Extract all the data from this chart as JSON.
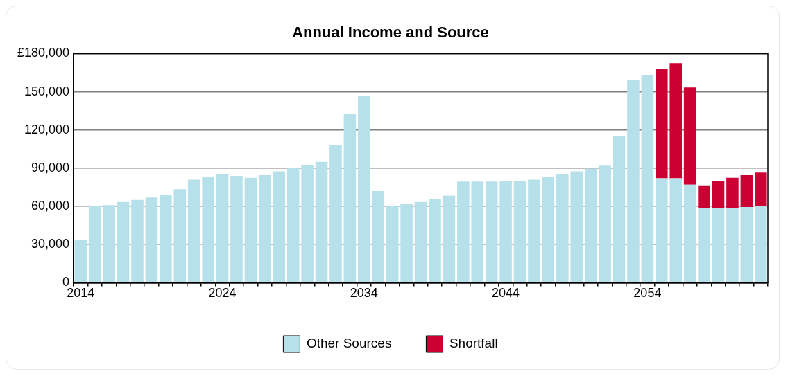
{
  "chart_data": {
    "type": "bar",
    "title": "Annual Income and Source",
    "stacked": true,
    "categories": [
      "2014",
      null,
      null,
      null,
      null,
      null,
      null,
      null,
      null,
      null,
      "2024",
      null,
      null,
      null,
      null,
      null,
      null,
      null,
      null,
      null,
      "2034",
      null,
      null,
      null,
      null,
      null,
      null,
      null,
      null,
      null,
      "2044",
      null,
      null,
      null,
      null,
      null,
      null,
      null,
      null,
      null,
      "2054",
      null,
      null,
      null,
      null,
      null,
      null,
      null,
      null
    ],
    "series": [
      {
        "name": "Other Sources",
        "color": "#b7e1ea",
        "values": [
          34000,
          60000,
          61000,
          63500,
          65000,
          67000,
          69000,
          73500,
          81000,
          83000,
          85000,
          84000,
          82500,
          84500,
          87500,
          90000,
          92500,
          95000,
          108500,
          132500,
          147000,
          72000,
          60000,
          62000,
          63500,
          66000,
          68500,
          79500,
          79500,
          79500,
          80000,
          80000,
          81000,
          83000,
          85000,
          87500,
          89500,
          92000,
          115000,
          159000,
          163000,
          82000,
          82000,
          77000,
          58500,
          59000,
          59000,
          59500,
          60000
        ]
      },
      {
        "name": "Shortfall",
        "color": "#cc0033",
        "values": [
          0,
          0,
          0,
          0,
          0,
          0,
          0,
          0,
          0,
          0,
          0,
          0,
          0,
          0,
          0,
          0,
          0,
          0,
          0,
          0,
          0,
          0,
          0,
          0,
          0,
          0,
          0,
          0,
          0,
          0,
          0,
          0,
          0,
          0,
          0,
          0,
          0,
          0,
          0,
          0,
          0,
          86000,
          90500,
          76500,
          18000,
          21000,
          23500,
          25000,
          26500
        ]
      }
    ],
    "ylim": [
      0,
      180000
    ],
    "yticks": [
      0,
      {
        "value": 30000,
        "label": "30,000"
      },
      {
        "value": 60000,
        "label": "60,000"
      },
      {
        "value": 90000,
        "label": "90,000"
      },
      {
        "value": 120000,
        "label": "120,000"
      },
      {
        "value": 150000,
        "label": "150,000"
      },
      {
        "value": 180000,
        "label": "£180,000"
      }
    ],
    "grid": "y",
    "legend": "bottom"
  }
}
